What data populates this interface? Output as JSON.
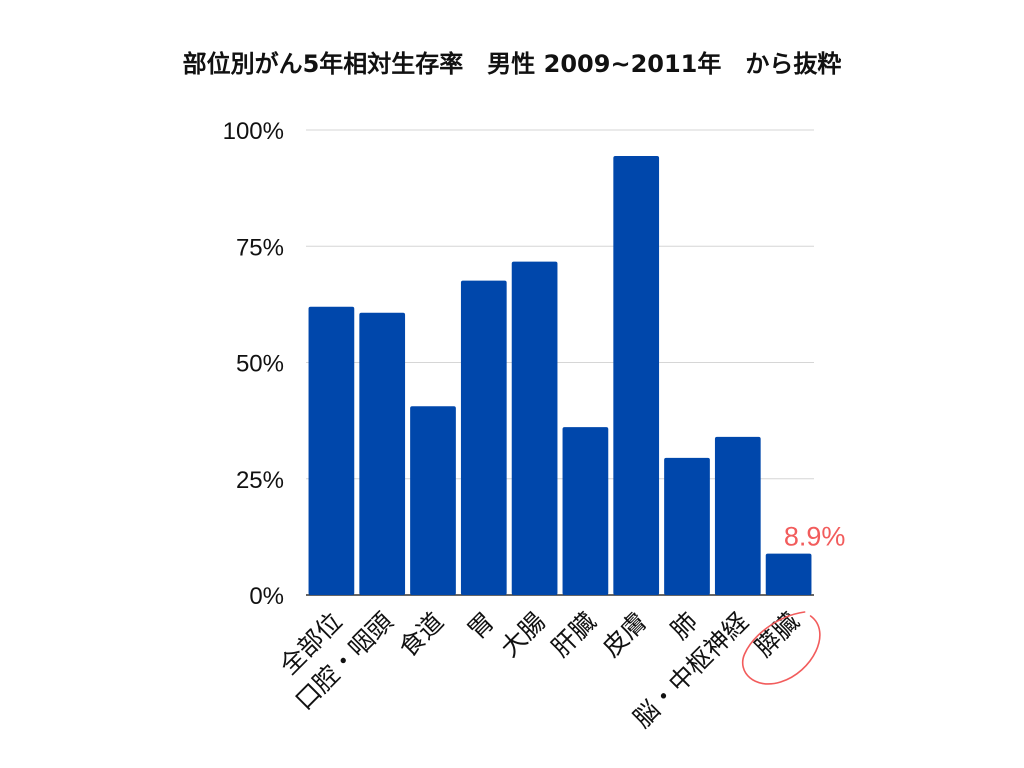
{
  "chart_data": {
    "type": "bar",
    "title": "部位別がん5年相対生存率　男性 2009~2011年　から抜粋",
    "xlabel": "",
    "ylabel": "",
    "categories": [
      "全部位",
      "口腔・咽頭",
      "食道",
      "胃",
      "大腸",
      "肝臓",
      "皮膚",
      "肺",
      "脳・中枢神経",
      "膵臓"
    ],
    "values": [
      62.0,
      60.7,
      40.6,
      67.6,
      71.7,
      36.1,
      94.4,
      29.5,
      34.0,
      8.9
    ],
    "ylim": [
      0,
      100
    ],
    "y_ticks": [
      {
        "value": 0,
        "label": "0%"
      },
      {
        "value": 25,
        "label": "25%"
      },
      {
        "value": 50,
        "label": "50%"
      },
      {
        "value": 75,
        "label": "75%"
      },
      {
        "value": 100,
        "label": "100%"
      }
    ],
    "grid": true,
    "legend": "none",
    "bar_color": "#0047AB",
    "highlight": {
      "category": "膵臓",
      "label": "8.9%",
      "color": "#F25C5C"
    }
  }
}
